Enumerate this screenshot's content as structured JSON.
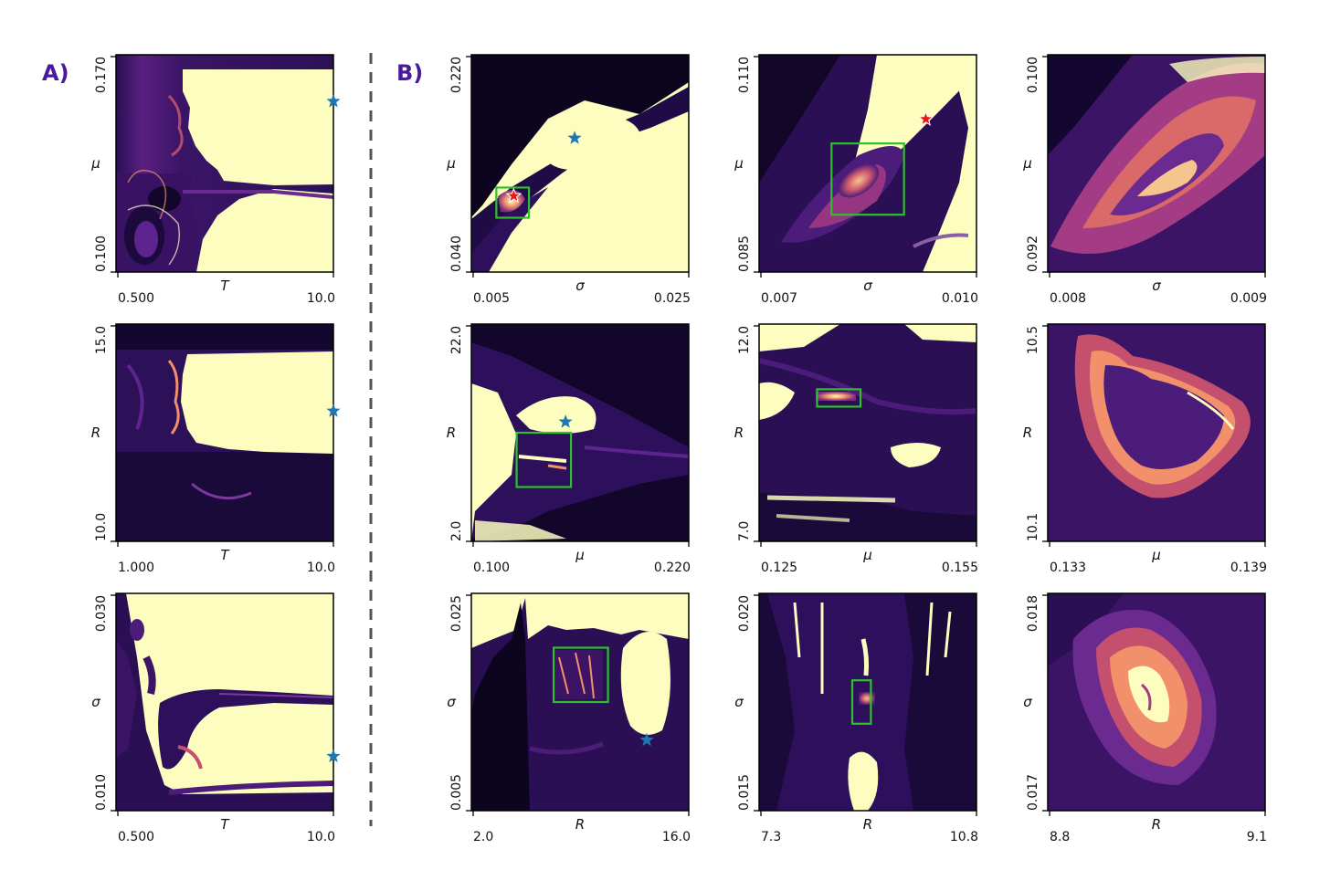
{
  "panel_labels": [
    "A)",
    "B)"
  ],
  "colors": {
    "divider": "#555555",
    "zoom_box": "#2fbf2f",
    "star_blue": "#1f77b4",
    "star_red": "#e41a1c",
    "map_dark": "#1b0c41",
    "map_mid": "#4b1c7a",
    "map_hot": "#f1906b",
    "map_light": "#fcfdbf"
  },
  "chart_data": [
    {
      "id": "A1",
      "type": "heatmap",
      "xlabel": "T",
      "ylabel": "μ",
      "xticks": [
        "0.500",
        "10.0"
      ],
      "yticks": [
        "0.100",
        "0.170"
      ],
      "xlim": [
        0.5,
        10.0
      ],
      "ylim": [
        0.1,
        0.17
      ],
      "markers": [
        {
          "x": 10.0,
          "y": 0.155,
          "color": "blue"
        }
      ]
    },
    {
      "id": "B1",
      "type": "heatmap",
      "xlabel": "σ",
      "ylabel": "μ",
      "xticks": [
        "0.005",
        "0.025"
      ],
      "yticks": [
        "0.040",
        "0.220"
      ],
      "xlim": [
        0.005,
        0.025
      ],
      "ylim": [
        0.04,
        0.22
      ],
      "markers": [
        {
          "x": 0.0145,
          "y": 0.151,
          "color": "blue"
        },
        {
          "x": 0.0089,
          "y": 0.103,
          "color": "red"
        }
      ],
      "zoom_boxes": [
        {
          "x0": 0.0073,
          "x1": 0.0103,
          "y0": 0.085,
          "y1": 0.11
        }
      ]
    },
    {
      "id": "B2",
      "type": "heatmap",
      "xlabel": "σ",
      "ylabel": "μ",
      "xticks": [
        "0.007",
        "0.010"
      ],
      "yticks": [
        "0.085",
        "0.110"
      ],
      "xlim": [
        0.007,
        0.01
      ],
      "ylim": [
        0.085,
        0.11
      ],
      "markers": [
        {
          "x": 0.0093,
          "y": 0.1026,
          "color": "red"
        }
      ],
      "zoom_boxes": [
        {
          "x0": 0.008,
          "x1": 0.009,
          "y0": 0.0916,
          "y1": 0.0998
        }
      ]
    },
    {
      "id": "B3",
      "type": "heatmap",
      "xlabel": "σ",
      "ylabel": "μ",
      "xticks": [
        "0.008",
        "0.009"
      ],
      "yticks": [
        "0.092",
        "0.100"
      ],
      "xlim": [
        0.008,
        0.009
      ],
      "ylim": [
        0.092,
        0.1
      ]
    },
    {
      "id": "A2",
      "type": "heatmap",
      "xlabel": "T",
      "ylabel": "R",
      "xticks": [
        "1.000",
        "10.0"
      ],
      "yticks": [
        "10.0",
        "15.0"
      ],
      "xlim": [
        1.0,
        10.0
      ],
      "ylim": [
        10.0,
        15.0
      ],
      "markers": [
        {
          "x": 10.0,
          "y": 13.0,
          "color": "blue"
        }
      ]
    },
    {
      "id": "B4",
      "type": "heatmap",
      "xlabel": "μ",
      "ylabel": "R",
      "xticks": [
        "0.100",
        "0.220"
      ],
      "yticks": [
        "2.0",
        "22.0"
      ],
      "xlim": [
        0.1,
        0.22
      ],
      "ylim": [
        2.0,
        22.0
      ],
      "markers": [
        {
          "x": 0.152,
          "y": 13.0,
          "color": "blue"
        }
      ],
      "zoom_boxes": [
        {
          "x0": 0.125,
          "x1": 0.155,
          "y0": 7.0,
          "y1": 12.0
        }
      ]
    },
    {
      "id": "B5",
      "type": "heatmap",
      "xlabel": "μ",
      "ylabel": "R",
      "xticks": [
        "0.125",
        "0.155"
      ],
      "yticks": [
        "7.0",
        "12.0"
      ],
      "xlim": [
        0.125,
        0.155
      ],
      "ylim": [
        7.0,
        12.0
      ],
      "zoom_boxes": [
        {
          "x0": 0.133,
          "x1": 0.139,
          "y0": 10.1,
          "y1": 10.5
        }
      ]
    },
    {
      "id": "B6",
      "type": "heatmap",
      "xlabel": "μ",
      "ylabel": "R",
      "xticks": [
        "0.133",
        "0.139"
      ],
      "yticks": [
        "10.1",
        "10.5"
      ],
      "xlim": [
        0.133,
        0.139
      ],
      "ylim": [
        10.1,
        10.5
      ]
    },
    {
      "id": "A3",
      "type": "heatmap",
      "xlabel": "T",
      "ylabel": "σ",
      "xticks": [
        "0.500",
        "10.0"
      ],
      "yticks": [
        "0.010",
        "0.030"
      ],
      "xlim": [
        0.5,
        10.0
      ],
      "ylim": [
        0.01,
        0.03
      ],
      "markers": [
        {
          "x": 10.0,
          "y": 0.015,
          "color": "blue"
        }
      ]
    },
    {
      "id": "B7",
      "type": "heatmap",
      "xlabel": "R",
      "ylabel": "σ",
      "xticks": [
        "2.0",
        "16.0"
      ],
      "yticks": [
        "0.005",
        "0.025"
      ],
      "xlim": [
        2.0,
        16.0
      ],
      "ylim": [
        0.005,
        0.025
      ],
      "markers": [
        {
          "x": 13.3,
          "y": 0.0115,
          "color": "blue"
        }
      ],
      "zoom_boxes": [
        {
          "x0": 7.3,
          "x1": 10.8,
          "y0": 0.015,
          "y1": 0.02
        }
      ]
    },
    {
      "id": "B8",
      "type": "heatmap",
      "xlabel": "R",
      "ylabel": "σ",
      "xticks": [
        "7.3",
        "10.8"
      ],
      "yticks": [
        "0.015",
        "0.020"
      ],
      "xlim": [
        7.3,
        10.8
      ],
      "ylim": [
        0.015,
        0.02
      ],
      "zoom_boxes": [
        {
          "x0": 8.8,
          "x1": 9.1,
          "y0": 0.017,
          "y1": 0.018
        }
      ]
    },
    {
      "id": "B9",
      "type": "heatmap",
      "xlabel": "R",
      "ylabel": "σ",
      "xticks": [
        "8.8",
        "9.1"
      ],
      "yticks": [
        "0.017",
        "0.018"
      ],
      "xlim": [
        8.8,
        9.1
      ],
      "ylim": [
        0.017,
        0.018
      ]
    }
  ]
}
